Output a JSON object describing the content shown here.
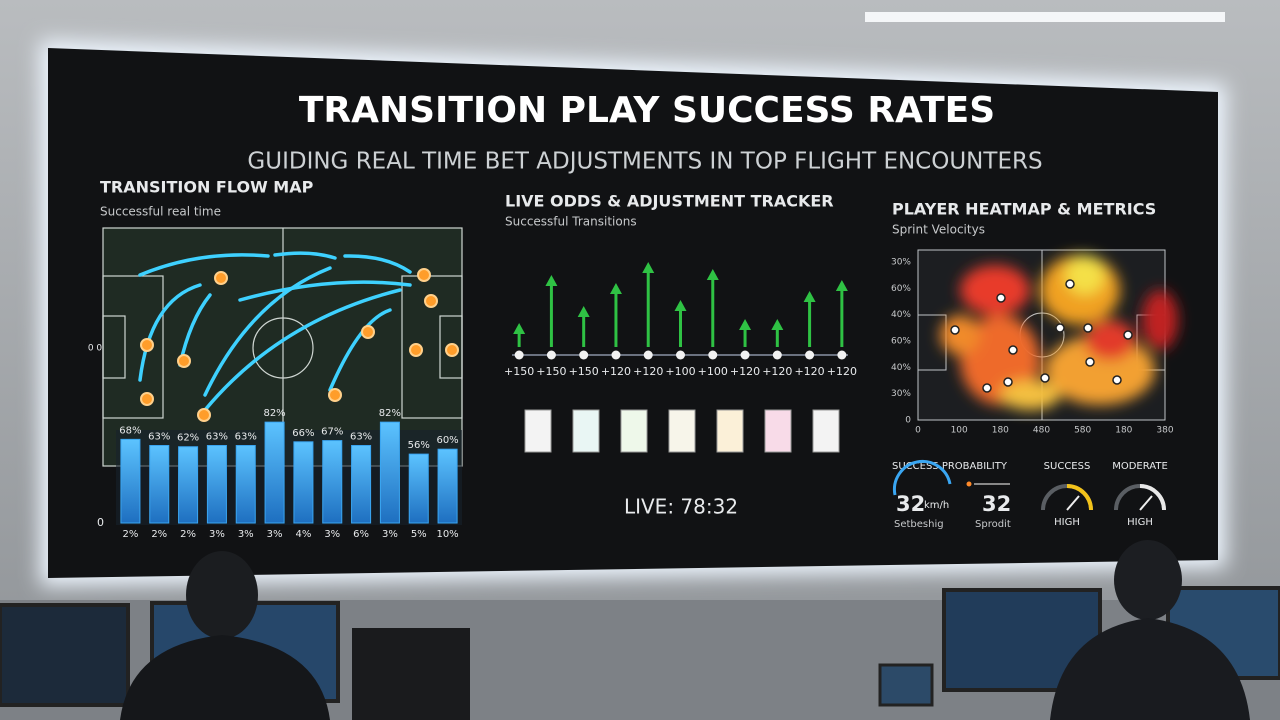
{
  "header": {
    "title": "TRANSITION PLAY SUCCESS RATES",
    "subtitle": "GUIDING REAL TIME BET ADJUSTMENTS IN TOP FLIGHT ENCOUNTERS"
  },
  "chart_data": [
    {
      "type": "bar",
      "title": "TRANSITION FLOW MAP",
      "subtitle": "Successful real time",
      "annotation": "0 0",
      "categories": [
        "2%",
        "2%",
        "2%",
        "3%",
        "3%",
        "3%",
        "4%",
        "3%",
        "6%",
        "3%",
        "5%",
        "10%"
      ],
      "values": [
        68,
        63,
        62,
        63,
        63,
        82,
        66,
        67,
        63,
        82,
        56,
        60
      ],
      "value_labels": [
        "68%",
        "63%",
        "62%",
        "63%",
        "63%",
        "82%",
        "66%",
        "67%",
        "63%",
        "82%",
        "56%",
        "60%"
      ],
      "color": "#3aa6f2",
      "ylim": [
        0,
        100
      ],
      "yticks": [
        0
      ],
      "grid": false
    },
    {
      "type": "arrow",
      "title": "LIVE ODDS & ADJUSTMENT TRACKER",
      "subtitle": "Successful Transitions",
      "annotation": "LIVE: 78:32",
      "categories": [
        "+150",
        "+150",
        "+150",
        "+120",
        "+120",
        "+100",
        "+100",
        "+120",
        "+120",
        "+120",
        "+120"
      ],
      "values": [
        30,
        78,
        47,
        70,
        91,
        53,
        84,
        34,
        34,
        62,
        73
      ],
      "color": "#2fc244",
      "ylim": [
        0,
        100
      ]
    }
  ],
  "heatmap": {
    "title": "PLAYER HEATMAP & METRICS",
    "subtitle": "Sprint Velocitys",
    "y_labels": [
      "30%",
      "60%",
      "40%",
      "60%",
      "40%",
      "30%",
      "0"
    ],
    "x_labels": [
      "0",
      "100",
      "180",
      "480",
      "580",
      "180",
      "380"
    ]
  },
  "metrics": {
    "title": "SUCCESS PROBABILITY",
    "speed_value": "32",
    "speed_unit": "km/h",
    "speed_label": "Setbeshig",
    "sprint_value": "32",
    "sprint_label": "Sprodit",
    "gauges": [
      {
        "title": "SUCCESS",
        "label": "HIGH"
      },
      {
        "title": "MODERATE",
        "label": "HIGH"
      }
    ]
  }
}
